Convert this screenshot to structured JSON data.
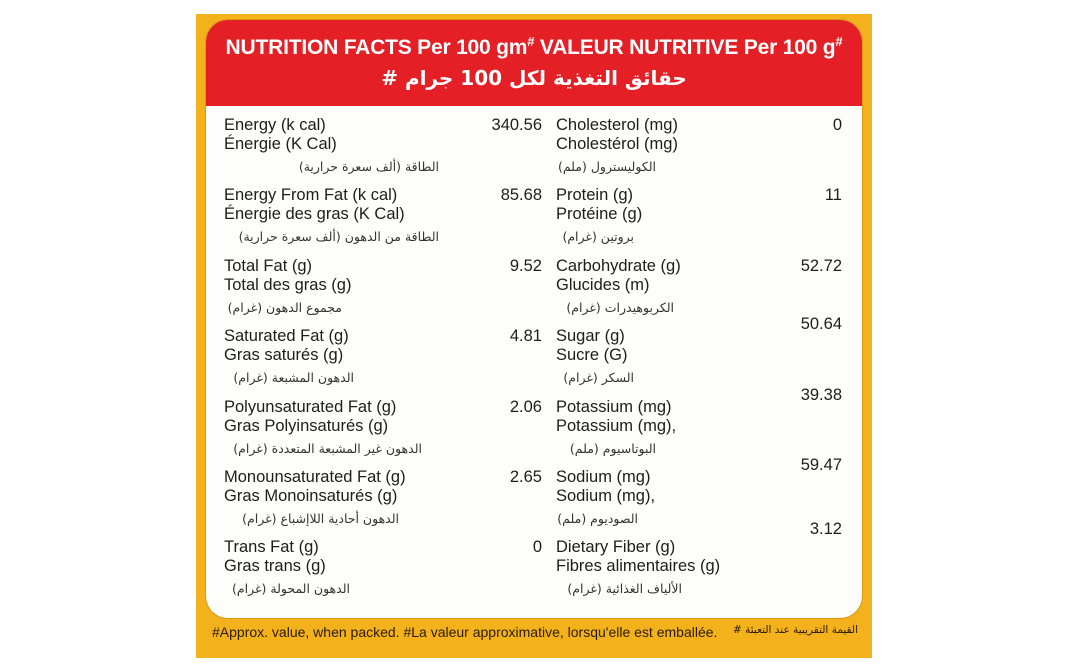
{
  "header": {
    "title_line1": "NUTRITION FACTS Per 100 gm",
    "mark1": "#",
    "title_line1b": " VALEUR NUTRITIVE Per 100 g",
    "mark2": "#",
    "title_arabic": "حقائق التغذية لكل 100 جرام #"
  },
  "left_rows": [
    {
      "en": "Energy (k cal)",
      "fr": "Énergie (K Cal)",
      "ar": "الطاقة (ألف سعرة حرارية)",
      "value": "340.56"
    },
    {
      "en": "Energy From Fat (k cal)",
      "fr": "Énergie des gras (K Cal)",
      "ar": "الطاقة من الدهون (ألف سعرة حرارية)",
      "value": "85.68"
    },
    {
      "en": "Total Fat (g)",
      "fr": "Total des gras (g)",
      "ar": "مجموع الدهون (غرام)",
      "value": "9.52"
    },
    {
      "en": "Saturated Fat (g)",
      "fr": "Gras saturés (g)",
      "ar": "الدهون المشبعة (غرام)",
      "value": "4.81"
    },
    {
      "en": "Polyunsaturated Fat (g)",
      "fr": "Gras Polyinsaturés (g)",
      "ar": "الدهون غير المشبعة المتعددة (غرام)",
      "value": "2.06"
    },
    {
      "en": "Monounsaturated Fat (g)",
      "fr": "Gras Monoinsaturés (g)",
      "ar": "الدهون أحادية اللاإشباع (غرام)",
      "value": "2.65"
    },
    {
      "en": "Trans Fat (g)",
      "fr": "Gras trans (g)",
      "ar": "الدهون المحولة (غرام)",
      "value": "0"
    }
  ],
  "right_rows": [
    {
      "en": "Cholesterol (mg)",
      "fr": "Cholestérol (mg)",
      "ar": "الكوليسترول (ملم)",
      "value": "0"
    },
    {
      "en": "Protein (g)",
      "fr": "Protéine (g)",
      "ar": "بروتين (غرام)",
      "value": "11"
    },
    {
      "en": "Carbohydrate (g)",
      "fr": "Glucides (m)",
      "ar": "الكربوهيدرات (غرام)",
      "value": "52.72"
    },
    {
      "en": "Sugar (g)",
      "fr": "Sucre (G)",
      "ar": "السكر (غرام)",
      "value": "50.64"
    },
    {
      "en": "Potassium (mg)",
      "fr": "Potassium (mg),",
      "ar": "البوتاسيوم (ملم)",
      "value": "39.38"
    },
    {
      "en": "Sodium (mg)",
      "fr": "Sodium (mg),",
      "ar": "الصوديوم (ملم)",
      "value": "59.47"
    },
    {
      "en": "Dietary Fiber (g)",
      "fr": "Fibres alimentaires (g)",
      "ar": "الألياف الغذائية (غرام)",
      "value": "3.12"
    }
  ],
  "footer": {
    "english": "#Approx. value, when packed. #La valeur approximative, lorsqu'elle est emballée.",
    "arabic": "القيمة التقريبية عند التعبئة #"
  },
  "colors": {
    "header_red": "#e41f26",
    "frame_yellow": "#f3b21c",
    "panel_white": "#fdfdfb"
  }
}
